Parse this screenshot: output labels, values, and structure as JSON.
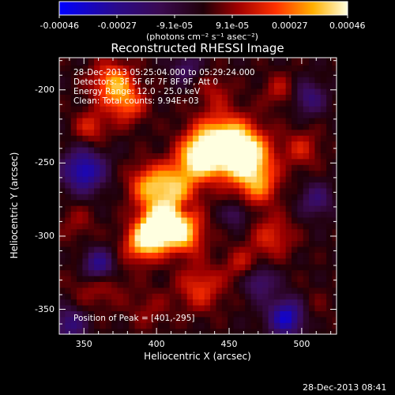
{
  "colorbar": {
    "ticks": [
      "-0.00046",
      "-0.00027",
      "-9.1e-05",
      "9.1e-05",
      "0.00027",
      "0.00046"
    ],
    "units_label": "(photons cm⁻² s⁻¹ asec⁻²)"
  },
  "chart_data": {
    "type": "heatmap",
    "title": "Reconstructed RHESSI Image",
    "xlabel": "Heliocentric X (arcsec)",
    "ylabel": "Heliocentric Y (arcsec)",
    "xlim": [
      333,
      524
    ],
    "ylim": [
      -367,
      -178
    ],
    "x_ticks": [
      350,
      400,
      450,
      500
    ],
    "y_ticks": [
      -200,
      -250,
      -300,
      -350
    ],
    "value_range": [
      -0.00046,
      0.00046
    ],
    "annotations": [
      "28-Dec-2013 05:25:04.000 to 05:29:24.000",
      "Detectors: 3F 5F 6F 7F 8F 9F, Att 0",
      "Energy Range: 12.0 - 25.0 keV",
      "Clean: Total counts: 9.94E+03"
    ],
    "peak_label": "Position of Peak = [401,-295]",
    "peak": [
      401,
      -295
    ]
  },
  "footer": {
    "timestamp": "28-Dec-2013 08:41"
  },
  "colors": {
    "background": "#000000",
    "foreground": "#ffffff"
  }
}
